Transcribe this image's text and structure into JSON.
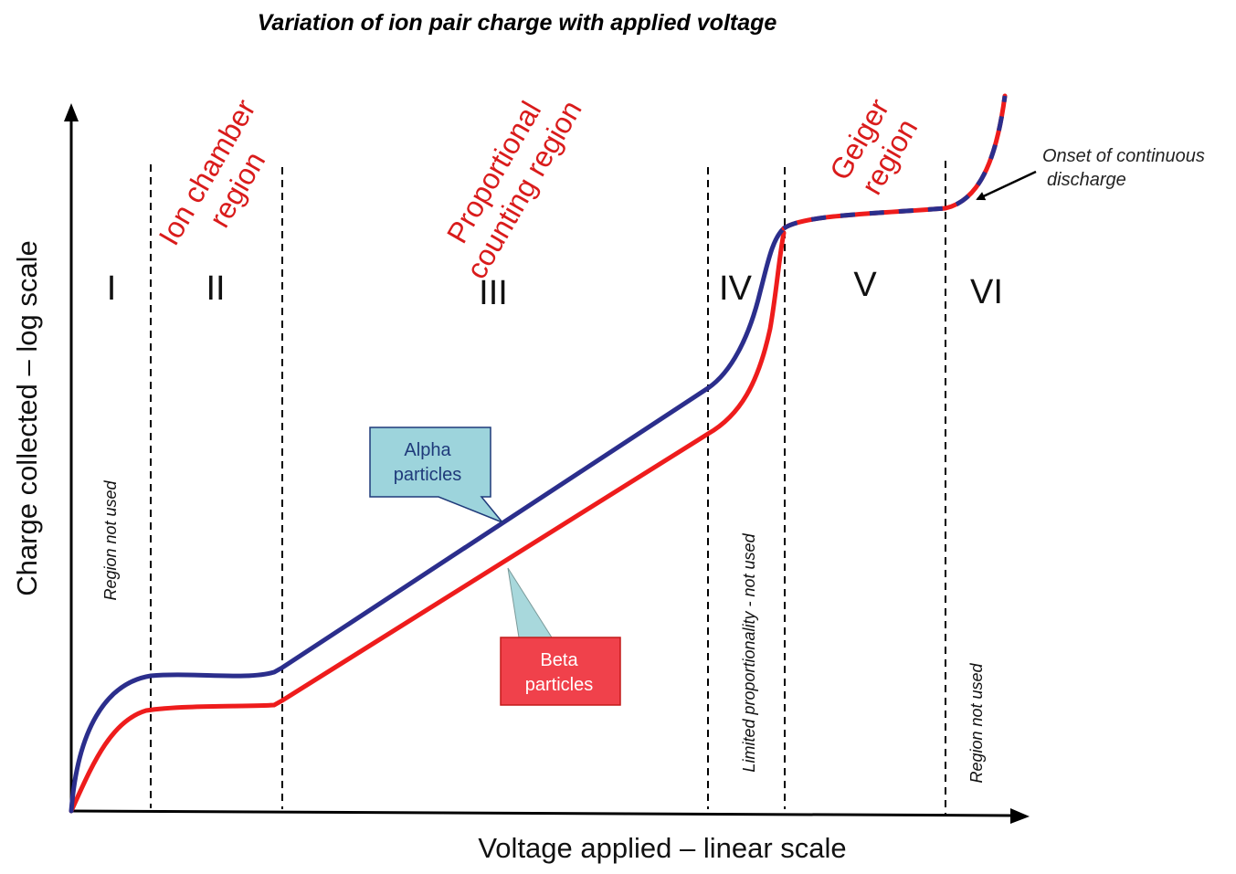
{
  "title": "Variation of ion pair charge with applied voltage",
  "axes": {
    "x_label": "Voltage applied – linear scale",
    "y_label": "Charge collected – log scale"
  },
  "regions": [
    {
      "numeral": "I",
      "name": [
        "",
        ""
      ],
      "note": "Region  not used"
    },
    {
      "numeral": "II",
      "name": [
        "Ion chamber",
        "region"
      ],
      "note": ""
    },
    {
      "numeral": "III",
      "name": [
        "Proportional",
        "counting region"
      ],
      "note": ""
    },
    {
      "numeral": "IV",
      "name": [
        "",
        ""
      ],
      "note": "Limited proportionality - not used"
    },
    {
      "numeral": "V",
      "name": [
        "Geiger",
        "region"
      ],
      "note": ""
    },
    {
      "numeral": "VI",
      "name": [
        "",
        ""
      ],
      "note": "Region  not used"
    }
  ],
  "curves": {
    "alpha": {
      "label_line1": "Alpha",
      "label_line2": "particles",
      "color": "#2b2e8c",
      "callout_fill": "#9dd4dc",
      "callout_text_color": "#1f3a7a"
    },
    "beta": {
      "label_line1": "Beta",
      "label_line2": "particles",
      "color": "#ee1c1c",
      "callout_fill": "#f0414b",
      "callout_text_color": "#ffffff"
    }
  },
  "annotation": {
    "line1": "Onset of continuous",
    "line2": "discharge"
  }
}
